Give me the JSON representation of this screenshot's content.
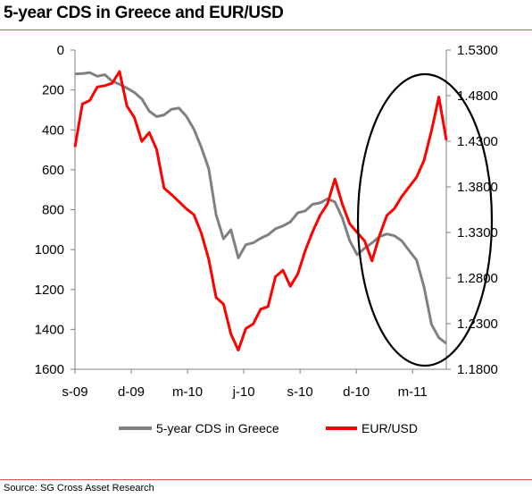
{
  "title": "5-year CDS in Greece and EUR/USD",
  "source": "Source: SG Cross Asset Research",
  "chart_data": {
    "type": "line",
    "x_tick_labels": [
      "s-09",
      "d-09",
      "m-10",
      "j-10",
      "s-10",
      "d-10",
      "m-11"
    ],
    "x_range": [
      0,
      100
    ],
    "left_axis": {
      "ticks": [
        "0",
        "200",
        "400",
        "600",
        "800",
        "1000",
        "1200",
        "1400",
        "1600"
      ],
      "range": [
        0,
        1600
      ],
      "inverted": true
    },
    "right_axis": {
      "ticks": [
        "1.5300",
        "1.4800",
        "1.4300",
        "1.3800",
        "1.3300",
        "1.2800",
        "1.2300",
        "1.1800"
      ],
      "range": [
        1.18,
        1.53
      ]
    },
    "grid": false,
    "legend_position": "bottom",
    "annotation": "ellipse around the most recent period",
    "series": [
      {
        "name": "5-year CDS in Greece",
        "axis": "left",
        "color": "#808080",
        "x": [
          0,
          2,
          4,
          6,
          8,
          10,
          12,
          14,
          16,
          18,
          20,
          22,
          24,
          26,
          28,
          30,
          32,
          34,
          36,
          38,
          40,
          42,
          44,
          46,
          48,
          50,
          52,
          54,
          56,
          58,
          60,
          62,
          64,
          66,
          68,
          70,
          72,
          74,
          76,
          78,
          80,
          82,
          84,
          86,
          88,
          90,
          92,
          94,
          96,
          98,
          100
        ],
        "y": [
          120,
          115,
          118,
          125,
          130,
          150,
          175,
          190,
          210,
          250,
          300,
          340,
          320,
          300,
          290,
          330,
          400,
          480,
          600,
          820,
          950,
          900,
          1040,
          980,
          960,
          950,
          920,
          900,
          880,
          860,
          820,
          800,
          780,
          760,
          750,
          760,
          840,
          960,
          1020,
          1000,
          960,
          940,
          920,
          930,
          960,
          1000,
          1060,
          1180,
          1380,
          1440,
          1470
        ]
      },
      {
        "name": "EUR/USD",
        "axis": "right",
        "color": "#ff0000",
        "x": [
          0,
          2,
          4,
          6,
          8,
          10,
          12,
          14,
          16,
          18,
          20,
          22,
          24,
          26,
          28,
          30,
          32,
          34,
          36,
          38,
          40,
          42,
          44,
          46,
          48,
          50,
          52,
          54,
          56,
          58,
          60,
          62,
          64,
          66,
          68,
          70,
          72,
          74,
          76,
          78,
          80,
          82,
          84,
          86,
          88,
          90,
          92,
          94,
          96,
          98,
          100
        ],
        "y": [
          1.425,
          1.47,
          1.475,
          1.49,
          1.49,
          1.495,
          1.505,
          1.47,
          1.455,
          1.43,
          1.44,
          1.42,
          1.38,
          1.37,
          1.365,
          1.355,
          1.35,
          1.33,
          1.3,
          1.26,
          1.25,
          1.22,
          1.2,
          1.225,
          1.23,
          1.245,
          1.25,
          1.28,
          1.29,
          1.27,
          1.285,
          1.31,
          1.33,
          1.35,
          1.36,
          1.39,
          1.36,
          1.34,
          1.33,
          1.32,
          1.3,
          1.325,
          1.35,
          1.355,
          1.37,
          1.38,
          1.39,
          1.41,
          1.44,
          1.48,
          1.43
        ]
      }
    ]
  }
}
